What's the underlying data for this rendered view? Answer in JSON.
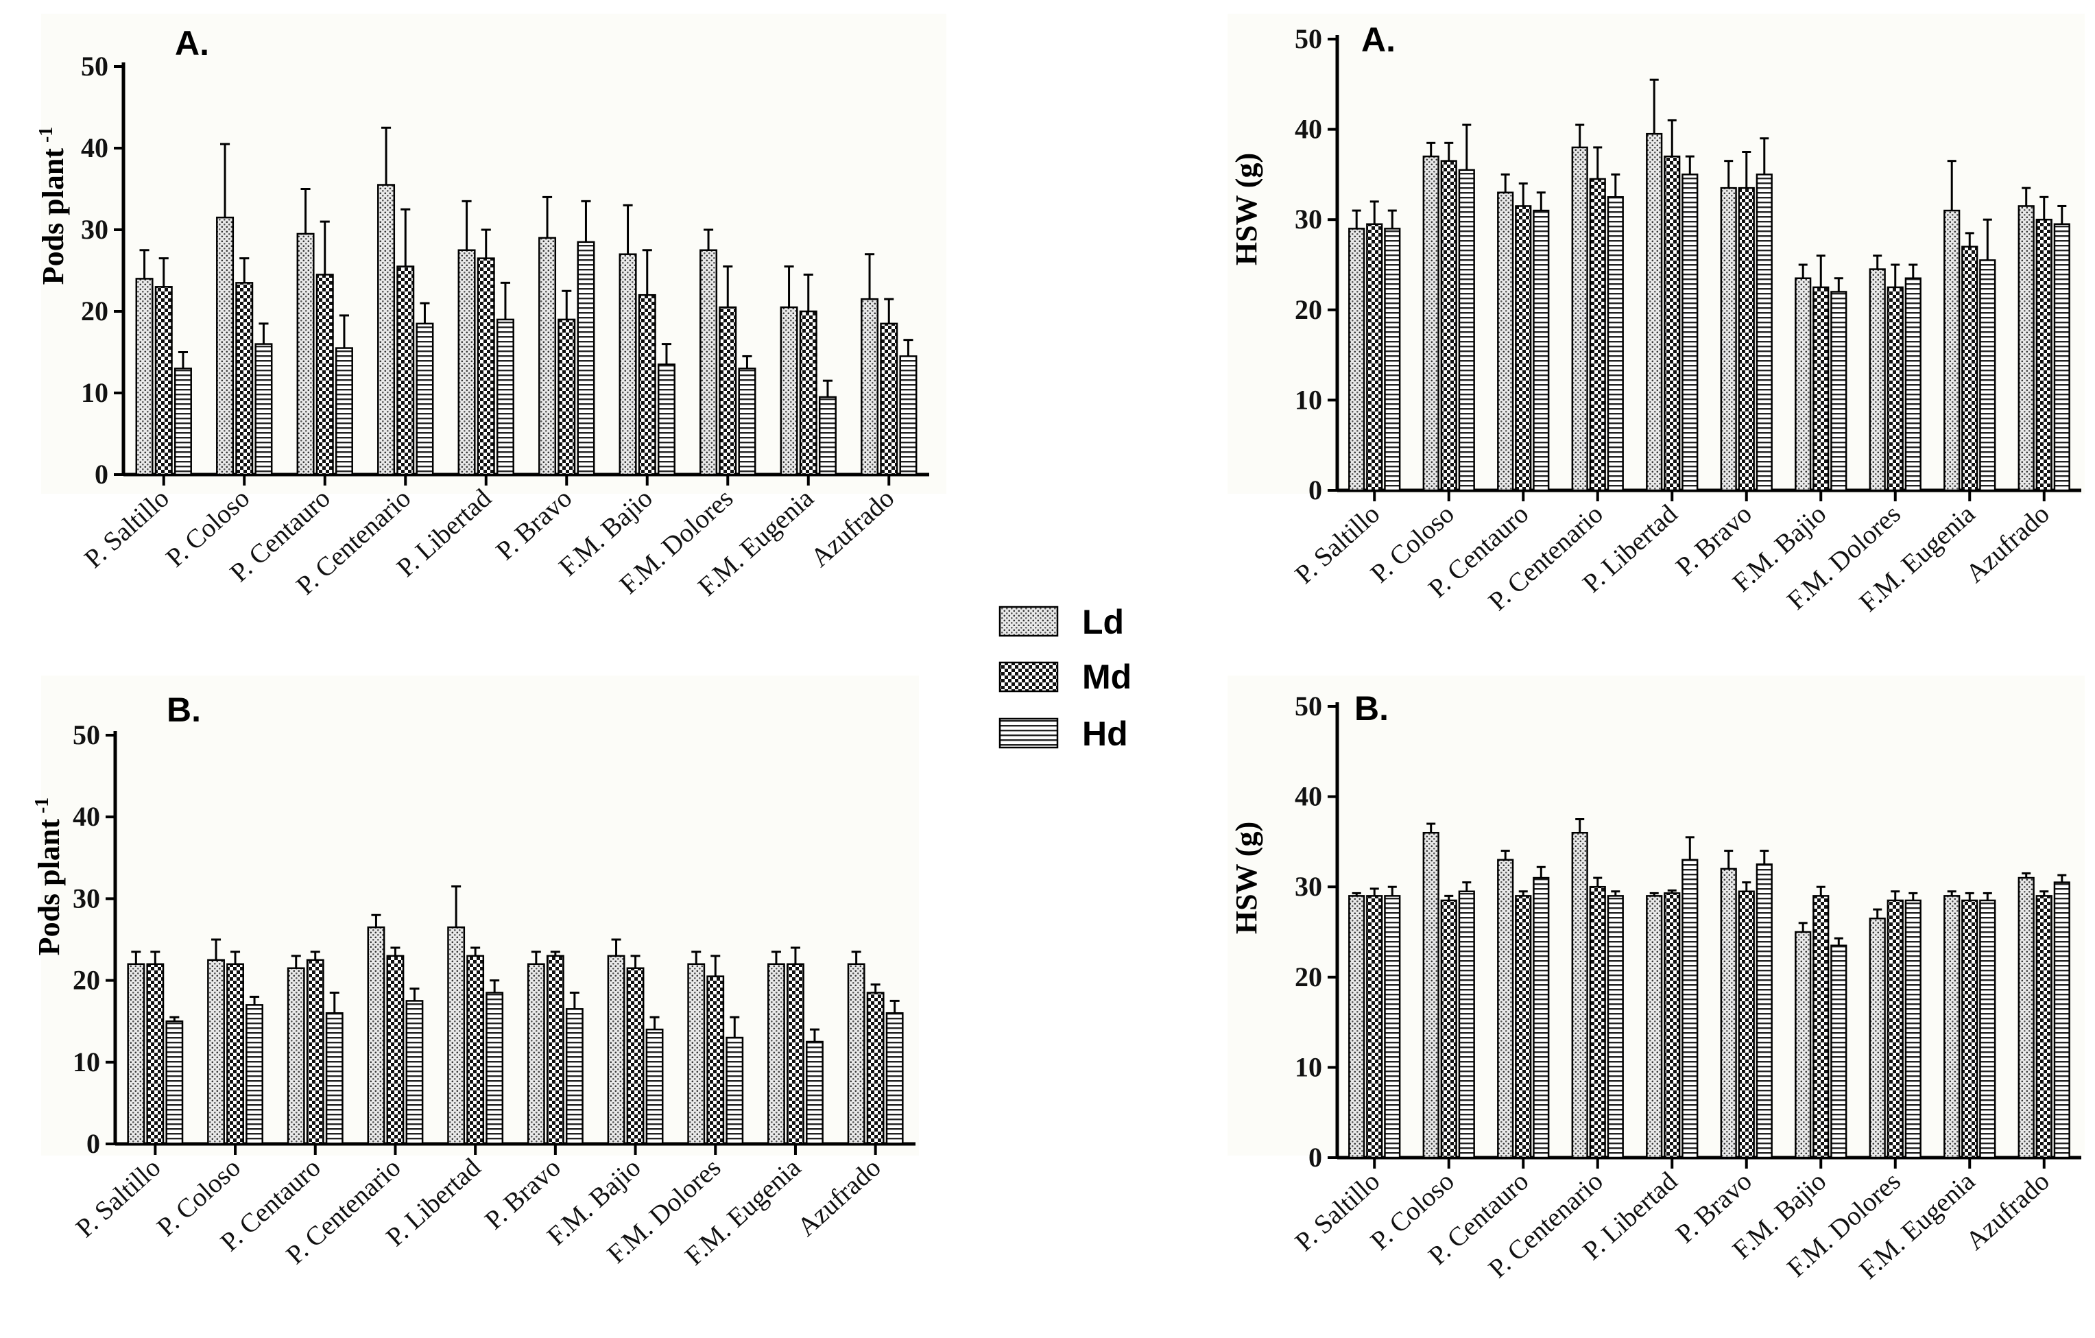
{
  "chart_data": [
    {
      "id": "pods-A",
      "type": "bar",
      "title": "A.",
      "ylabel": "Pods plant",
      "ylabel_superscript": "-1",
      "xlabel": "",
      "ylim": [
        0,
        50
      ],
      "yticks": [
        0,
        10,
        20,
        30,
        40,
        50
      ],
      "categories": [
        "P. Saltillo",
        "P. Coloso",
        "P. Centauro",
        "P. Centenario",
        "P. Libertad",
        "P. Bravo",
        "F.M. Bajio",
        "F.M. Dolores",
        "F.M. Eugenia",
        "Azufrado"
      ],
      "series": [
        {
          "name": "Ld",
          "values": [
            24,
            31.5,
            29.5,
            35.5,
            27.5,
            29,
            27,
            27.5,
            20.5,
            21.5
          ],
          "errors": [
            3.5,
            9,
            5.5,
            7,
            6,
            5,
            6,
            2.5,
            5,
            5.5
          ]
        },
        {
          "name": "Md",
          "values": [
            23,
            23.5,
            24.5,
            25.5,
            26.5,
            19,
            22,
            20.5,
            20,
            18.5
          ],
          "errors": [
            3.5,
            3,
            6.5,
            7,
            3.5,
            3.5,
            5.5,
            5,
            4.5,
            3
          ]
        },
        {
          "name": "Hd",
          "values": [
            13,
            16,
            15.5,
            18.5,
            19,
            28.5,
            13.5,
            13,
            9.5,
            14.5
          ],
          "errors": [
            2,
            2.5,
            4,
            2.5,
            4.5,
            5,
            2.5,
            1.5,
            2,
            2
          ]
        }
      ]
    },
    {
      "id": "hsw-A",
      "type": "bar",
      "title": "A.",
      "ylabel": "HSW (g)",
      "xlabel": "",
      "ylim": [
        0,
        50
      ],
      "yticks": [
        0,
        10,
        20,
        30,
        40,
        50
      ],
      "categories": [
        "P. Saltillo",
        "P. Coloso",
        "P. Centauro",
        "P. Centenario",
        "P. Libertad",
        "P. Bravo",
        "F.M. Bajio",
        "F.M. Dolores",
        "F.M. Eugenia",
        "Azufrado"
      ],
      "series": [
        {
          "name": "Ld",
          "values": [
            29,
            37,
            33,
            38,
            39.5,
            33.5,
            23.5,
            24.5,
            31,
            31.5
          ],
          "errors": [
            2,
            1.5,
            2,
            2.5,
            6,
            3,
            1.5,
            1.5,
            5.5,
            2
          ]
        },
        {
          "name": "Md",
          "values": [
            29.5,
            36.5,
            31.5,
            34.5,
            37,
            33.5,
            22.5,
            22.5,
            27,
            30
          ],
          "errors": [
            2.5,
            2,
            2.5,
            3.5,
            4,
            4,
            3.5,
            2.5,
            1.5,
            2.5
          ]
        },
        {
          "name": "Hd",
          "values": [
            29,
            35.5,
            31,
            32.5,
            35,
            35,
            22,
            23.5,
            25.5,
            29.5
          ],
          "errors": [
            2,
            5,
            2,
            2.5,
            2,
            4,
            1.5,
            1.5,
            4.5,
            2
          ]
        }
      ]
    },
    {
      "id": "pods-B",
      "type": "bar",
      "title": "B.",
      "ylabel": "Pods plant",
      "ylabel_superscript": "-1",
      "xlabel": "",
      "ylim": [
        0,
        50
      ],
      "yticks": [
        0,
        10,
        20,
        30,
        40,
        50
      ],
      "categories": [
        "P. Saltillo",
        "P. Coloso",
        "P. Centauro",
        "P. Centenario",
        "P. Libertad",
        "P. Bravo",
        "F.M. Bajio",
        "F.M. Dolores",
        "F.M. Eugenia",
        "Azufrado"
      ],
      "series": [
        {
          "name": "Ld",
          "values": [
            22,
            22.5,
            21.5,
            26.5,
            26.5,
            22,
            23,
            22,
            22,
            22
          ],
          "errors": [
            1.5,
            2.5,
            1.5,
            1.5,
            5,
            1.5,
            2,
            1.5,
            1.5,
            1.5
          ]
        },
        {
          "name": "Md",
          "values": [
            22,
            22,
            22.5,
            23,
            23,
            23,
            21.5,
            20.5,
            22,
            18.5
          ],
          "errors": [
            1.5,
            1.5,
            1,
            1,
            1,
            0.5,
            1.5,
            2.5,
            2,
            1
          ]
        },
        {
          "name": "Hd",
          "values": [
            15,
            17,
            16,
            17.5,
            18.5,
            16.5,
            14,
            13,
            12.5,
            16
          ],
          "errors": [
            0.5,
            1,
            2.5,
            1.5,
            1.5,
            2,
            1.5,
            2.5,
            1.5,
            1.5
          ]
        }
      ]
    },
    {
      "id": "hsw-B",
      "type": "bar",
      "title": "B.",
      "ylabel": "HSW (g)",
      "xlabel": "",
      "ylim": [
        0,
        50
      ],
      "yticks": [
        0,
        10,
        20,
        30,
        40,
        50
      ],
      "categories": [
        "P. Saltillo",
        "P. Coloso",
        "P. Centauro",
        "P. Centenario",
        "P. Libertad",
        "P. Bravo",
        "F.M. Bajio",
        "F.M. Dolores",
        "F.M. Eugenia",
        "Azufrado"
      ],
      "series": [
        {
          "name": "Ld",
          "values": [
            29,
            36,
            33,
            36,
            29,
            32,
            25,
            26.5,
            29,
            31
          ],
          "errors": [
            0.3,
            1,
            1,
            1.5,
            0.3,
            2,
            1,
            1,
            0.5,
            0.5
          ]
        },
        {
          "name": "Md",
          "values": [
            29,
            28.5,
            29,
            30,
            29.3,
            29.5,
            29,
            28.5,
            28.5,
            29
          ],
          "errors": [
            0.8,
            0.5,
            0.5,
            1,
            0.3,
            1,
            1,
            1,
            0.8,
            0.5
          ]
        },
        {
          "name": "Hd",
          "values": [
            29,
            29.5,
            31,
            29,
            33,
            32.5,
            23.5,
            28.5,
            28.5,
            30.5
          ],
          "errors": [
            1,
            1,
            1.2,
            0.5,
            2.5,
            1.5,
            0.8,
            0.8,
            0.8,
            0.8
          ]
        }
      ]
    }
  ],
  "legend": {
    "items": [
      {
        "label": "Ld",
        "pattern": "dots"
      },
      {
        "label": "Md",
        "pattern": "checker"
      },
      {
        "label": "Hd",
        "pattern": "hlines"
      }
    ]
  }
}
